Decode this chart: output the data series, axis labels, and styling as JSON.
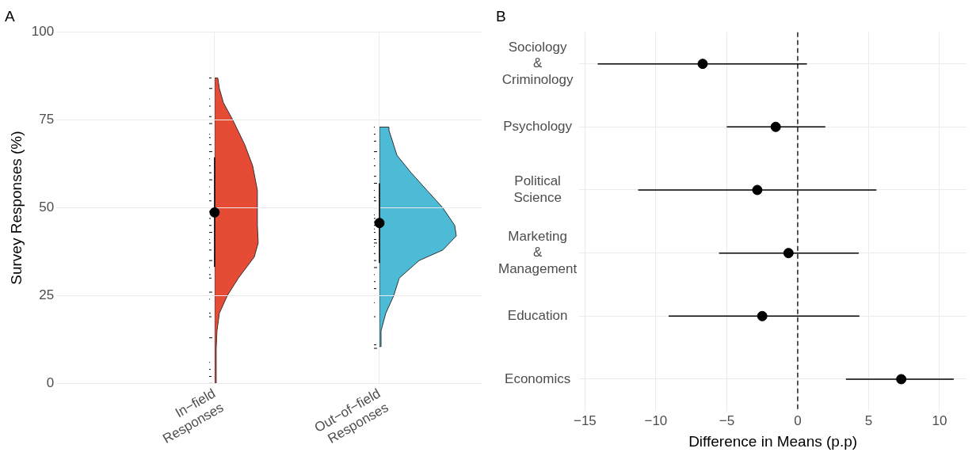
{
  "chart_data": [
    {
      "type": "scatter",
      "title": "A",
      "ylabel": "Survey Responses (%)",
      "categories": [
        "In−field\nResponses",
        "Out−of−field\nResponses"
      ],
      "values": [
        48.7,
        45.7
      ],
      "errors": [
        [
          33.2,
          64.4
        ],
        [
          34.3,
          57.0
        ]
      ],
      "color": "#000000",
      "marker": "circle",
      "ylim": [
        0,
        100
      ],
      "yticks": [
        0,
        25,
        50,
        75,
        100
      ],
      "grid": true
    },
    {
      "type": "scatter",
      "title": "B",
      "orientation": "horizontal",
      "xlabel": "Difference in Means (p.p)",
      "categories": [
        "Sociology\n&\nCriminology",
        "Psychology",
        "Political\nScience",
        "Marketing\n&\nManagement",
        "Education",
        "Economics"
      ],
      "values": [
        -6.7,
        -1.55,
        -2.85,
        -0.65,
        -2.5,
        7.3
      ],
      "errors": [
        [
          -14.1,
          0.65
        ],
        [
          -5.0,
          1.95
        ],
        [
          -11.25,
          5.55
        ],
        [
          -5.55,
          4.3
        ],
        [
          -9.1,
          4.35
        ],
        [
          3.4,
          11.0
        ]
      ],
      "color": "#000000",
      "marker": "circle",
      "xlim": [
        -15.4,
        11.9
      ],
      "xticks": [
        -15,
        -10,
        -5,
        0,
        5,
        10
      ],
      "grid": true,
      "ref_lines": [
        {
          "axis": "x",
          "value": 0,
          "line_style": "dashed",
          "color": "#000000"
        }
      ]
    }
  ]
}
